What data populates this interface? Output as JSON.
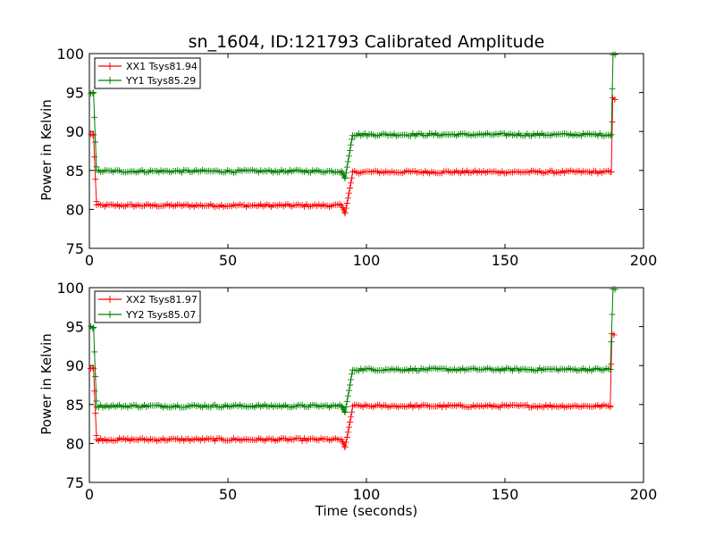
{
  "chart_data": [
    {
      "type": "line",
      "title": "sn_1604, ID:121793 Calibrated Amplitude",
      "xlabel": "",
      "ylabel": "Power in Kelvin",
      "xlim": [
        0,
        200
      ],
      "ylim": [
        75,
        100
      ],
      "xticks": [
        0,
        50,
        100,
        150,
        200
      ],
      "yticks": [
        75,
        80,
        85,
        90,
        95,
        100
      ],
      "grid": false,
      "legend_position": "top-left",
      "series": [
        {
          "name": "XX1 Tsys81.94",
          "color": "#ff0000",
          "marker": "+",
          "segments": [
            {
              "x0": 0.5,
              "x1": 1.5,
              "y": 89.6
            },
            {
              "x0": 1.5,
              "x1": 2.6,
              "y_from": 89.6,
              "y_to": 80.6
            },
            {
              "x0": 2.6,
              "x1": 91.0,
              "y": 80.5
            },
            {
              "x0": 91.0,
              "x1": 92.3,
              "y_from": 80.5,
              "y_to": 79.5
            },
            {
              "x0": 92.3,
              "x1": 95.0,
              "y_from": 79.5,
              "y_to": 84.5
            },
            {
              "x0": 95.0,
              "x1": 188.4,
              "y": 84.8
            },
            {
              "x0": 188.4,
              "x1": 188.9,
              "y_from": 84.8,
              "y_to": 94.0
            },
            {
              "x0": 188.9,
              "x1": 190.0,
              "y": 94.2
            }
          ]
        },
        {
          "name": "YY1 Tsys85.29",
          "color": "#008000",
          "marker": "+",
          "segments": [
            {
              "x0": 0.5,
              "x1": 1.5,
              "y": 95.0
            },
            {
              "x0": 1.5,
              "x1": 2.6,
              "y_from": 95.0,
              "y_to": 85.0
            },
            {
              "x0": 2.6,
              "x1": 91.0,
              "y": 84.9
            },
            {
              "x0": 91.0,
              "x1": 92.3,
              "y_from": 84.9,
              "y_to": 84.0
            },
            {
              "x0": 92.3,
              "x1": 95.0,
              "y_from": 84.0,
              "y_to": 89.5
            },
            {
              "x0": 95.0,
              "x1": 188.4,
              "y": 89.6
            },
            {
              "x0": 188.4,
              "x1": 189.0,
              "y_from": 89.6,
              "y_to": 99.7
            },
            {
              "x0": 189.0,
              "x1": 190.0,
              "y": 99.9
            }
          ]
        }
      ]
    },
    {
      "type": "line",
      "title": "",
      "xlabel": "Time (seconds)",
      "ylabel": "Power in Kelvin",
      "xlim": [
        0,
        200
      ],
      "ylim": [
        75,
        100
      ],
      "xticks": [
        0,
        50,
        100,
        150,
        200
      ],
      "yticks": [
        75,
        80,
        85,
        90,
        95,
        100
      ],
      "grid": false,
      "legend_position": "top-left",
      "series": [
        {
          "name": "XX2 Tsys81.97",
          "color": "#ff0000",
          "marker": "+",
          "segments": [
            {
              "x0": 0.5,
              "x1": 1.5,
              "y": 89.6
            },
            {
              "x0": 1.5,
              "x1": 2.6,
              "y_from": 89.6,
              "y_to": 80.6
            },
            {
              "x0": 2.6,
              "x1": 91.0,
              "y": 80.5
            },
            {
              "x0": 91.0,
              "x1": 92.3,
              "y_from": 80.5,
              "y_to": 79.5
            },
            {
              "x0": 92.3,
              "x1": 95.0,
              "y_from": 79.5,
              "y_to": 84.5
            },
            {
              "x0": 95.0,
              "x1": 188.0,
              "y": 84.8
            },
            {
              "x0": 188.0,
              "x1": 188.6,
              "y_from": 84.8,
              "y_to": 94.0
            },
            {
              "x0": 188.6,
              "x1": 190.0,
              "y": 94.1
            }
          ]
        },
        {
          "name": "YY2 Tsys85.07",
          "color": "#008000",
          "marker": "+",
          "segments": [
            {
              "x0": 0.5,
              "x1": 1.5,
              "y": 94.9
            },
            {
              "x0": 1.5,
              "x1": 2.6,
              "y_from": 94.9,
              "y_to": 85.0
            },
            {
              "x0": 2.6,
              "x1": 91.0,
              "y": 84.8
            },
            {
              "x0": 91.0,
              "x1": 92.3,
              "y_from": 84.8,
              "y_to": 84.0
            },
            {
              "x0": 92.3,
              "x1": 95.0,
              "y_from": 84.0,
              "y_to": 89.4
            },
            {
              "x0": 95.0,
              "x1": 188.0,
              "y": 89.5
            },
            {
              "x0": 188.0,
              "x1": 189.0,
              "y_from": 89.5,
              "y_to": 99.6
            },
            {
              "x0": 189.0,
              "x1": 190.0,
              "y": 99.8
            }
          ]
        }
      ]
    }
  ]
}
